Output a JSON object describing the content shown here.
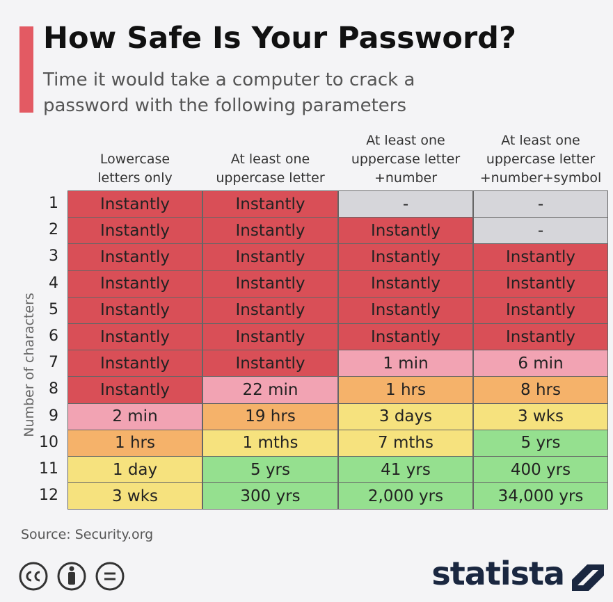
{
  "header": {
    "title": "How Safe Is Your Password?",
    "subtitle": [
      "Time it would take a computer to crack a",
      "password with the following parameters"
    ]
  },
  "table": {
    "row_axis_label": "Number of characters",
    "columns": [
      [
        "Lowercase",
        "letters only"
      ],
      [
        "At least one",
        "uppercase letter"
      ],
      [
        "At least one",
        "uppercase letter",
        "+number"
      ],
      [
        "At least one",
        "uppercase letter",
        "+number+symbol"
      ]
    ],
    "rows": [
      {
        "label": "1",
        "cells": [
          "Instantly",
          "Instantly",
          "-",
          "-"
        ],
        "colors": [
          "#d94f57",
          "#d94f57",
          "#d6d6da",
          "#d6d6da"
        ]
      },
      {
        "label": "2",
        "cells": [
          "Instantly",
          "Instantly",
          "Instantly",
          "-"
        ],
        "colors": [
          "#d94f57",
          "#d94f57",
          "#d94f57",
          "#d6d6da"
        ]
      },
      {
        "label": "3",
        "cells": [
          "Instantly",
          "Instantly",
          "Instantly",
          "Instantly"
        ],
        "colors": [
          "#d94f57",
          "#d94f57",
          "#d94f57",
          "#d94f57"
        ]
      },
      {
        "label": "4",
        "cells": [
          "Instantly",
          "Instantly",
          "Instantly",
          "Instantly"
        ],
        "colors": [
          "#d94f57",
          "#d94f57",
          "#d94f57",
          "#d94f57"
        ]
      },
      {
        "label": "5",
        "cells": [
          "Instantly",
          "Instantly",
          "Instantly",
          "Instantly"
        ],
        "colors": [
          "#d94f57",
          "#d94f57",
          "#d94f57",
          "#d94f57"
        ]
      },
      {
        "label": "6",
        "cells": [
          "Instantly",
          "Instantly",
          "Instantly",
          "Instantly"
        ],
        "colors": [
          "#d94f57",
          "#d94f57",
          "#d94f57",
          "#d94f57"
        ]
      },
      {
        "label": "7",
        "cells": [
          "Instantly",
          "Instantly",
          "1 min",
          "6 min"
        ],
        "colors": [
          "#d94f57",
          "#d94f57",
          "#f2a3b3",
          "#f2a3b3"
        ]
      },
      {
        "label": "8",
        "cells": [
          "Instantly",
          "22 min",
          "1 hrs",
          "8 hrs"
        ],
        "colors": [
          "#d94f57",
          "#f2a3b3",
          "#f5b26a",
          "#f5b26a"
        ]
      },
      {
        "label": "9",
        "cells": [
          "2 min",
          "19 hrs",
          "3 days",
          "3 wks"
        ],
        "colors": [
          "#f2a3b3",
          "#f5b26a",
          "#f6e27e",
          "#f6e27e"
        ]
      },
      {
        "label": "10",
        "cells": [
          "1 hrs",
          "1 mths",
          "7 mths",
          "5 yrs"
        ],
        "colors": [
          "#f5b26a",
          "#f6e27e",
          "#f6e27e",
          "#95e08f"
        ]
      },
      {
        "label": "11",
        "cells": [
          "1 day",
          "5 yrs",
          "41 yrs",
          "400 yrs"
        ],
        "colors": [
          "#f6e27e",
          "#95e08f",
          "#95e08f",
          "#95e08f"
        ]
      },
      {
        "label": "12",
        "cells": [
          "3 wks",
          "300 yrs",
          "2,000 yrs",
          "34,000 yrs"
        ],
        "colors": [
          "#f6e27e",
          "#95e08f",
          "#95e08f",
          "#95e08f"
        ]
      }
    ]
  },
  "footer": {
    "source": "Source: Security.org",
    "logo": "statista"
  }
}
